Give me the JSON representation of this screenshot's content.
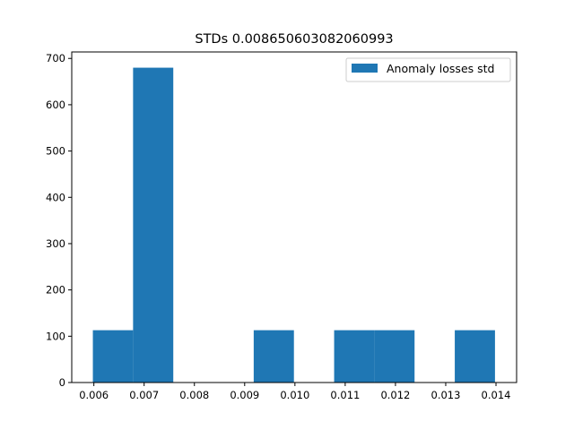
{
  "chart_data": {
    "type": "bar",
    "title": "STDs 0.008650603082060993",
    "xlabel": "",
    "ylabel": "",
    "xlim": [
      0.00556,
      0.01441
    ],
    "ylim": [
      0,
      714
    ],
    "x_ticks": [
      "0.006",
      "0.007",
      "0.008",
      "0.009",
      "0.010",
      "0.011",
      "0.012",
      "0.013",
      "0.014"
    ],
    "y_ticks": [
      "0",
      "100",
      "200",
      "300",
      "400",
      "500",
      "600",
      "700"
    ],
    "bins": [
      {
        "x0": 0.00598,
        "x1": 0.00678,
        "value": 113
      },
      {
        "x0": 0.00678,
        "x1": 0.00758,
        "value": 680
      },
      {
        "x0": 0.00758,
        "x1": 0.00838,
        "value": 0
      },
      {
        "x0": 0.00838,
        "x1": 0.00918,
        "value": 0
      },
      {
        "x0": 0.00918,
        "x1": 0.00998,
        "value": 113
      },
      {
        "x0": 0.00998,
        "x1": 0.01078,
        "value": 0
      },
      {
        "x0": 0.01078,
        "x1": 0.01158,
        "value": 113
      },
      {
        "x0": 0.01158,
        "x1": 0.01238,
        "value": 113
      },
      {
        "x0": 0.01238,
        "x1": 0.01318,
        "value": 0
      },
      {
        "x0": 0.01318,
        "x1": 0.01398,
        "value": 113
      }
    ],
    "series": [
      {
        "name": "Anomaly losses std",
        "color": "#1f77b4"
      }
    ],
    "legend_position": "top-right",
    "grid": false
  }
}
